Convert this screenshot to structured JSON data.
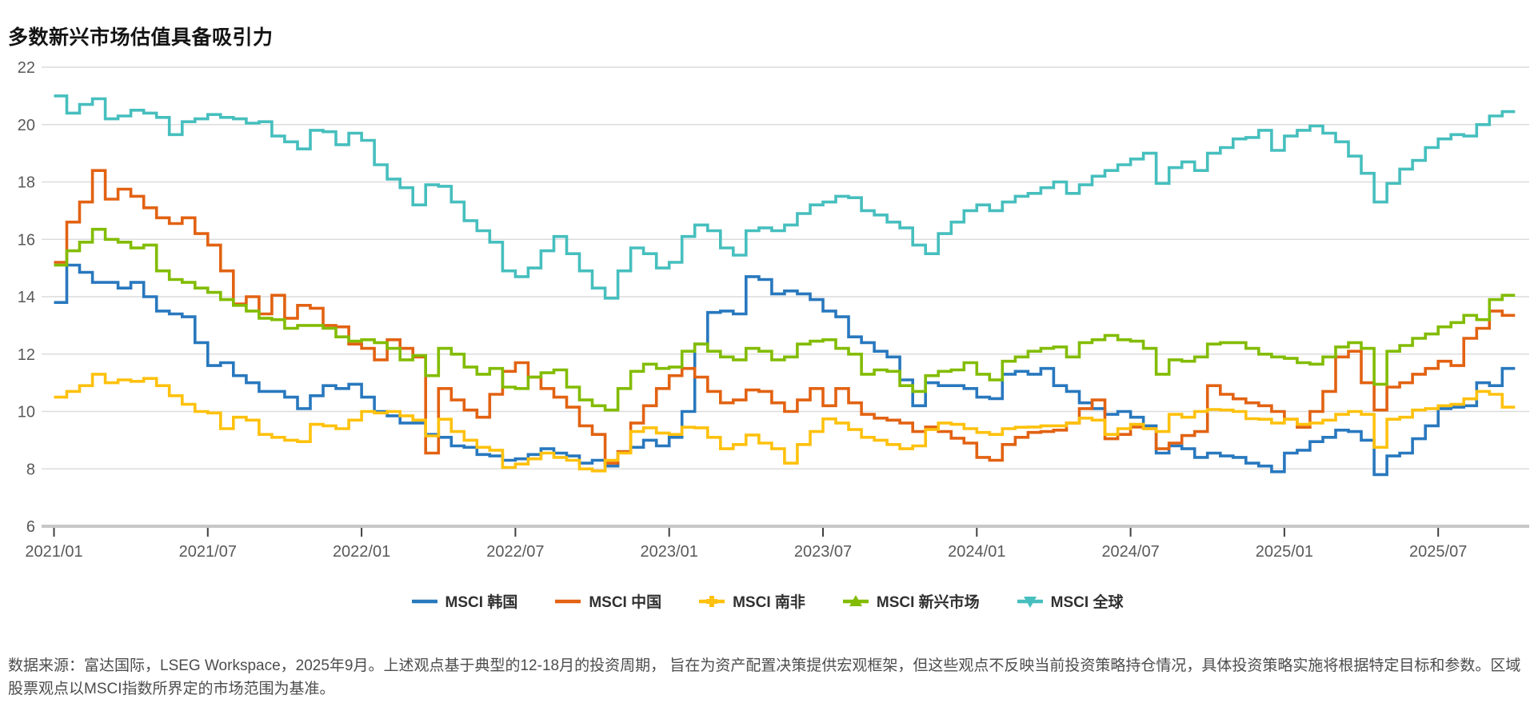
{
  "title": "多数新兴市场估值具备吸引力",
  "footer_note": "数据来源：富达国际，LSEG Workspace，2025年9月。上述观点基于典型的12-18月的投资周期， 旨在为资产配置决策提供宏观框架，但这些观点不反映当前投资策略持仓情况，具体投资策略实施将根据特定目标和参数。区域股票观点以MSCI指数所界定的市场范围为基准。",
  "colors": {
    "grid": "#dcdcdc",
    "axis_line": "#c7c7c7",
    "tick_mark": "#404040",
    "axis_label": "#595959",
    "title_text": "#141414",
    "legend_text": "#303030"
  },
  "chart_data": {
    "type": "line",
    "title": "多数新兴市场估值具备吸引力",
    "x_start_month": "2021-01",
    "samples_per_month": 2,
    "x_tick_labels": [
      "2021/01",
      "2021/07",
      "2022/01",
      "2022/07",
      "2023/01",
      "2023/07",
      "2024/01",
      "2024/07",
      "2025/01",
      "2025/07"
    ],
    "x_tick_month_interval": 6,
    "y_ticks": [
      22,
      20,
      18,
      16,
      14,
      12,
      10,
      8,
      6
    ],
    "ylim": [
      6,
      22
    ],
    "grid": "horizontal",
    "line_style": "step",
    "legend_position": "bottom-center",
    "series": [
      {
        "name": "MSCI 韩国",
        "color": "#2878be",
        "marker": "none",
        "values": [
          13.8,
          15.1,
          14.85,
          14.5,
          14.5,
          14.3,
          14.5,
          14.0,
          13.5,
          13.4,
          13.3,
          12.4,
          11.6,
          11.7,
          11.25,
          11.0,
          10.7,
          10.7,
          10.5,
          10.1,
          10.55,
          10.9,
          10.8,
          10.95,
          10.5,
          10.0,
          9.85,
          9.6,
          9.6,
          9.2,
          9.1,
          8.8,
          8.75,
          8.5,
          8.45,
          8.3,
          8.35,
          8.5,
          8.7,
          8.55,
          8.45,
          8.2,
          8.3,
          8.1,
          8.6,
          8.75,
          9.0,
          8.8,
          9.1,
          10.0,
          12.35,
          13.45,
          13.5,
          13.4,
          14.7,
          14.6,
          14.1,
          14.2,
          14.1,
          13.9,
          13.5,
          13.3,
          12.6,
          12.4,
          12.1,
          11.9,
          11.1,
          10.2,
          11.0,
          10.9,
          10.9,
          10.8,
          10.5,
          10.45,
          11.3,
          11.4,
          11.3,
          11.5,
          10.9,
          10.7,
          10.3,
          10.1,
          9.9,
          10.0,
          9.8,
          9.5,
          8.55,
          8.8,
          8.7,
          8.4,
          8.55,
          8.45,
          8.4,
          8.2,
          8.1,
          7.9,
          8.55,
          8.65,
          8.95,
          9.1,
          9.35,
          9.3,
          9.0,
          7.8,
          8.45,
          8.55,
          9.05,
          9.5,
          10.1,
          10.15,
          10.2,
          11.0,
          10.9,
          11.5
        ]
      },
      {
        "name": "MSCI 中国",
        "color": "#e26212",
        "marker": "none",
        "values": [
          15.2,
          16.6,
          17.3,
          18.4,
          17.4,
          17.75,
          17.5,
          17.1,
          16.75,
          16.55,
          16.75,
          16.2,
          15.8,
          14.9,
          13.75,
          14.0,
          13.4,
          14.05,
          13.25,
          13.7,
          13.6,
          13.0,
          12.95,
          12.35,
          12.2,
          11.8,
          12.5,
          12.2,
          11.9,
          8.55,
          10.8,
          10.4,
          10.05,
          9.8,
          10.6,
          11.4,
          11.7,
          11.2,
          10.8,
          10.5,
          10.15,
          9.5,
          9.2,
          8.2,
          8.6,
          9.6,
          10.2,
          10.8,
          11.25,
          11.5,
          11.2,
          10.7,
          10.3,
          10.4,
          10.75,
          10.7,
          10.3,
          10.0,
          10.4,
          10.8,
          10.2,
          10.8,
          10.3,
          9.9,
          9.77,
          9.7,
          9.6,
          9.3,
          9.46,
          9.3,
          9.07,
          8.9,
          8.4,
          8.3,
          8.85,
          9.1,
          9.27,
          9.3,
          9.35,
          9.6,
          10.1,
          10.4,
          9.05,
          9.2,
          9.46,
          9.4,
          8.7,
          8.9,
          9.16,
          9.3,
          10.9,
          10.6,
          10.44,
          10.3,
          10.2,
          10.0,
          9.73,
          9.45,
          10.0,
          10.7,
          11.9,
          12.1,
          11.0,
          10.05,
          10.85,
          11.0,
          11.3,
          11.5,
          11.75,
          11.6,
          12.55,
          12.9,
          13.5,
          13.35
        ]
      },
      {
        "name": "MSCI 南非",
        "color": "#fec10d",
        "marker": "plus",
        "values": [
          10.5,
          10.7,
          10.9,
          11.3,
          11.0,
          11.1,
          11.05,
          11.15,
          10.9,
          10.55,
          10.25,
          10.0,
          9.95,
          9.4,
          9.8,
          9.7,
          9.2,
          9.1,
          9.0,
          8.95,
          9.55,
          9.5,
          9.4,
          9.7,
          10.0,
          9.95,
          10.0,
          9.85,
          9.7,
          9.15,
          9.73,
          9.3,
          9.0,
          8.75,
          8.65,
          8.05,
          8.17,
          8.35,
          8.55,
          8.4,
          8.3,
          8.0,
          7.93,
          8.3,
          8.55,
          9.3,
          9.43,
          9.25,
          9.2,
          9.45,
          9.43,
          9.1,
          8.7,
          8.85,
          9.18,
          8.9,
          8.7,
          8.2,
          8.85,
          9.3,
          9.74,
          9.6,
          9.37,
          9.1,
          9.0,
          8.85,
          8.7,
          8.8,
          9.37,
          9.6,
          9.55,
          9.4,
          9.27,
          9.2,
          9.4,
          9.45,
          9.46,
          9.5,
          9.5,
          9.6,
          9.77,
          9.7,
          9.2,
          9.4,
          9.55,
          9.4,
          9.3,
          9.9,
          9.8,
          10.0,
          10.07,
          10.05,
          10.0,
          9.75,
          9.73,
          9.6,
          9.73,
          9.55,
          9.6,
          9.7,
          9.9,
          10.0,
          9.9,
          8.75,
          9.73,
          9.8,
          10.05,
          10.1,
          10.2,
          10.25,
          10.44,
          10.7,
          10.6,
          10.15
        ]
      },
      {
        "name": "MSCI 新兴市场",
        "color": "#82bc00",
        "marker": "triangle-up",
        "values": [
          15.1,
          15.6,
          15.9,
          16.35,
          16.0,
          15.9,
          15.7,
          15.8,
          14.9,
          14.6,
          14.5,
          14.3,
          14.15,
          13.9,
          13.7,
          13.5,
          13.25,
          13.2,
          12.9,
          13.0,
          13.0,
          12.9,
          12.6,
          12.45,
          12.5,
          12.4,
          12.2,
          11.8,
          11.95,
          11.25,
          12.2,
          12.0,
          11.55,
          11.3,
          11.5,
          10.85,
          10.8,
          11.2,
          11.35,
          11.45,
          10.85,
          10.4,
          10.2,
          10.05,
          10.8,
          11.4,
          11.65,
          11.5,
          11.55,
          12.1,
          12.35,
          12.1,
          11.9,
          11.8,
          12.2,
          12.1,
          11.8,
          11.9,
          12.35,
          12.45,
          12.5,
          12.2,
          12.0,
          11.3,
          11.45,
          11.4,
          10.9,
          10.7,
          11.25,
          11.4,
          11.45,
          11.7,
          11.3,
          11.1,
          11.75,
          11.9,
          12.1,
          12.2,
          12.25,
          11.9,
          12.4,
          12.5,
          12.65,
          12.5,
          12.45,
          12.2,
          11.3,
          11.8,
          11.75,
          11.9,
          12.35,
          12.4,
          12.4,
          12.2,
          12.0,
          11.9,
          11.85,
          11.7,
          11.65,
          11.9,
          12.25,
          12.4,
          12.2,
          10.95,
          12.1,
          12.3,
          12.55,
          12.7,
          12.95,
          13.1,
          13.35,
          13.2,
          13.9,
          14.05
        ]
      },
      {
        "name": "MSCI 全球",
        "color": "#46bfbe",
        "marker": "triangle-down",
        "values": [
          21.0,
          20.4,
          20.7,
          20.9,
          20.2,
          20.3,
          20.5,
          20.4,
          20.25,
          19.65,
          20.1,
          20.2,
          20.35,
          20.25,
          20.2,
          20.05,
          20.1,
          19.6,
          19.4,
          19.15,
          19.8,
          19.75,
          19.3,
          19.7,
          19.45,
          18.6,
          18.1,
          17.8,
          17.2,
          17.9,
          17.85,
          17.3,
          16.65,
          16.3,
          15.9,
          14.9,
          14.7,
          15.0,
          15.6,
          16.1,
          15.5,
          14.9,
          14.3,
          13.95,
          14.9,
          15.7,
          15.5,
          15.0,
          15.2,
          16.1,
          16.5,
          16.3,
          15.7,
          15.45,
          16.3,
          16.4,
          16.3,
          16.5,
          16.9,
          17.2,
          17.3,
          17.5,
          17.45,
          17.0,
          16.85,
          16.6,
          16.4,
          15.8,
          15.5,
          16.2,
          16.6,
          17.0,
          17.2,
          17.0,
          17.3,
          17.5,
          17.6,
          17.8,
          18.0,
          17.6,
          17.9,
          18.2,
          18.4,
          18.6,
          18.8,
          19.0,
          17.95,
          18.5,
          18.7,
          18.4,
          19.0,
          19.2,
          19.5,
          19.55,
          19.8,
          19.1,
          19.6,
          19.8,
          19.95,
          19.7,
          19.4,
          18.9,
          18.3,
          17.3,
          17.95,
          18.45,
          18.75,
          19.2,
          19.5,
          19.65,
          19.6,
          20.0,
          20.3,
          20.45
        ]
      }
    ]
  }
}
